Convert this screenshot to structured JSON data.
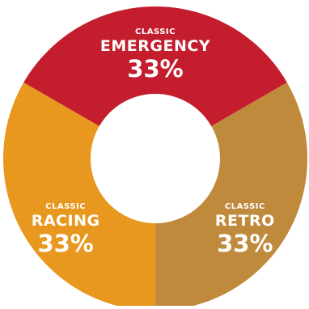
{
  "chart_data": {
    "type": "pie",
    "donut": true,
    "slices": [
      {
        "category": "CLASSIC",
        "name": "EMERGENCY",
        "value": 33,
        "label": "33%",
        "color": "#c41e2e"
      },
      {
        "category": "CLASSIC",
        "name": "RETRO",
        "value": 33,
        "label": "33%",
        "color": "#bf8a3c"
      },
      {
        "category": "CLASSIC",
        "name": "RACING",
        "value": 33,
        "label": "33%",
        "color": "#e8981f"
      }
    ]
  }
}
